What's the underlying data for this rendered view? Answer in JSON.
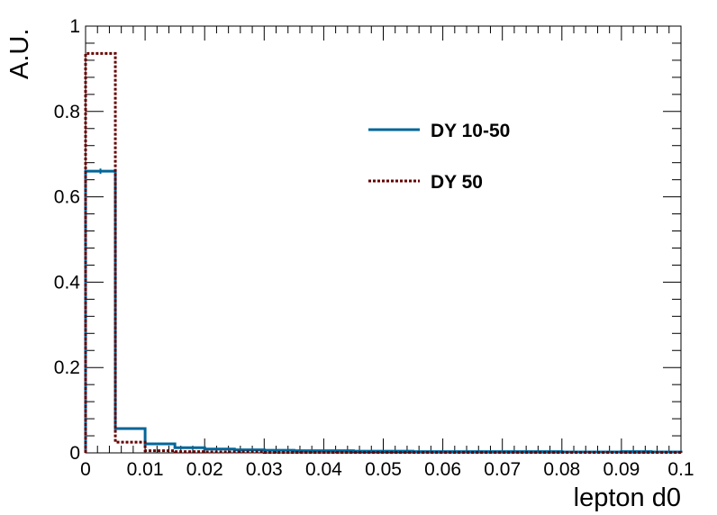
{
  "chart_data": {
    "type": "line",
    "xlabel": "lepton d0",
    "ylabel": "A.U.",
    "xlim": [
      0,
      0.1
    ],
    "ylim": [
      0,
      1.0
    ],
    "x_ticks": [
      {
        "value": 0,
        "label": "0"
      },
      {
        "value": 0.01,
        "label": "0.01"
      },
      {
        "value": 0.02,
        "label": "0.02"
      },
      {
        "value": 0.03,
        "label": "0.03"
      },
      {
        "value": 0.04,
        "label": "0.04"
      },
      {
        "value": 0.05,
        "label": "0.05"
      },
      {
        "value": 0.06,
        "label": "0.06"
      },
      {
        "value": 0.07,
        "label": "0.07"
      },
      {
        "value": 0.08,
        "label": "0.08"
      },
      {
        "value": 0.09,
        "label": "0.09"
      },
      {
        "value": 0.1,
        "label": "0.1"
      }
    ],
    "y_ticks": [
      {
        "value": 0,
        "label": "0"
      },
      {
        "value": 0.2,
        "label": "0.2"
      },
      {
        "value": 0.4,
        "label": "0.4"
      },
      {
        "value": 0.6,
        "label": "0.6"
      },
      {
        "value": 0.8,
        "label": "0.8"
      },
      {
        "value": 1.0,
        "label": "1"
      }
    ],
    "bin_edges": [
      0,
      0.005,
      0.01,
      0.015,
      0.02,
      0.025,
      0.03,
      0.035,
      0.04,
      0.045,
      0.05,
      0.055,
      0.06,
      0.065,
      0.07,
      0.075,
      0.08,
      0.085,
      0.09,
      0.095,
      0.1
    ],
    "series": [
      {
        "name": "DY 10-50",
        "color": "#006699",
        "style": "solid",
        "values": [
          0.66,
          0.057,
          0.021,
          0.012,
          0.009,
          0.007,
          0.006,
          0.005,
          0.005,
          0.004,
          0.004,
          0.003,
          0.003,
          0.003,
          0.003,
          0.003,
          0.002,
          0.002,
          0.003,
          0.002
        ]
      },
      {
        "name": "DY 50",
        "color": "#660000",
        "style": "dotted",
        "values": [
          0.936,
          0.025,
          0.005,
          0.003,
          0.002,
          0.002,
          0.001,
          0.001,
          0.001,
          0.001,
          0.001,
          0.001,
          0.001,
          0.001,
          0.001,
          0.001,
          0.001,
          0.001,
          0.001,
          0.001
        ]
      }
    ],
    "legend_position": "top-right",
    "grid": false
  }
}
